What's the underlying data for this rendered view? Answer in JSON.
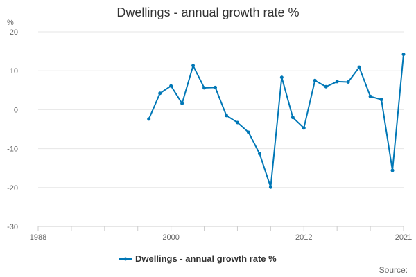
{
  "colors": {
    "series": "#0077b6",
    "grid": "#e6e6e6",
    "axis": "#cccccc",
    "text": "#333333",
    "muted": "#666666"
  },
  "source_label": "Source:",
  "chart_data": {
    "type": "line",
    "title": "Dwellings - annual growth rate %",
    "ylabel": "%",
    "xlabel": "",
    "xlim": [
      1988,
      2021
    ],
    "ylim": [
      -30,
      20
    ],
    "x_ticks": [
      1988,
      2000,
      2012,
      2021
    ],
    "y_ticks": [
      20,
      10,
      0,
      -10,
      -20,
      -30
    ],
    "grid": true,
    "legend": "bottom",
    "series": [
      {
        "name": "Dwellings - annual growth rate %",
        "x": [
          1998,
          1999,
          2000,
          2001,
          2002,
          2003,
          2004,
          2005,
          2006,
          2007,
          2008,
          2009,
          2010,
          2011,
          2012,
          2013,
          2014,
          2015,
          2016,
          2017,
          2018,
          2019,
          2020,
          2021
        ],
        "values": [
          -2.4,
          4.2,
          6.1,
          1.6,
          11.3,
          5.6,
          5.7,
          -1.5,
          -3.3,
          -5.8,
          -11.3,
          -19.9,
          8.3,
          -2.0,
          -4.7,
          7.5,
          5.9,
          7.2,
          7.1,
          10.9,
          3.4,
          2.6,
          -15.6,
          14.2
        ]
      }
    ]
  }
}
